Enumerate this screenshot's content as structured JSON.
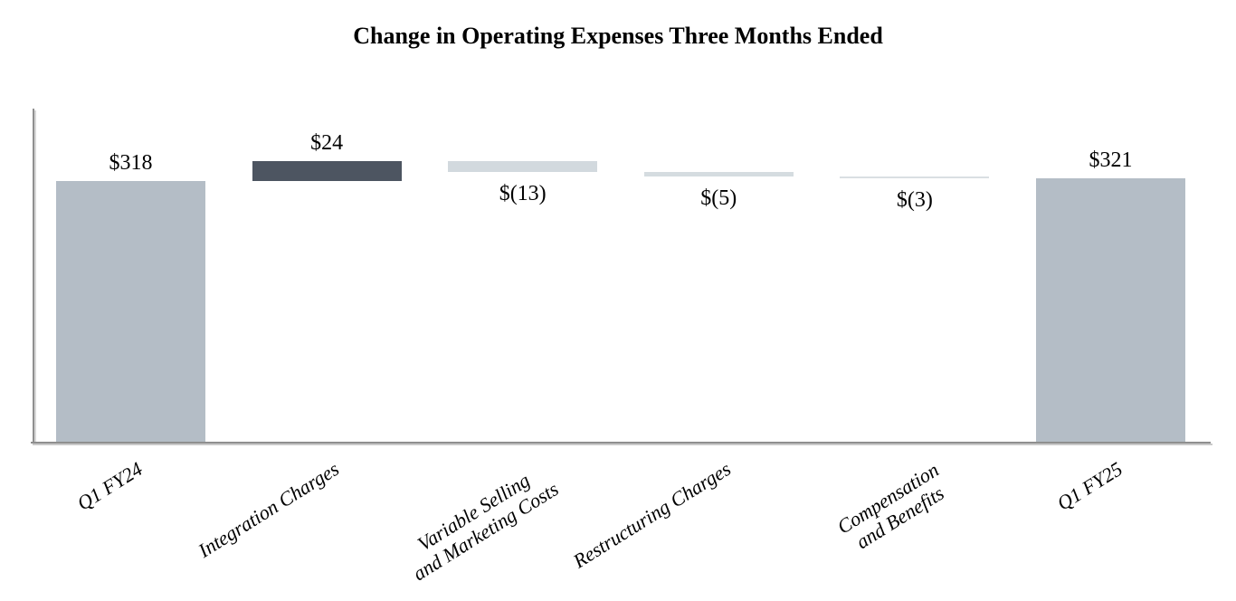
{
  "chart_data": {
    "type": "bar",
    "subtype": "waterfall",
    "title": "Change in Operating Expenses Three Months Ended",
    "xlabel": "",
    "ylabel": "",
    "ylim": [
      0,
      360
    ],
    "grid": false,
    "legend": false,
    "axis_color": "#8f8f8f",
    "categories": [
      "Q1 FY24",
      "Integration Charges",
      "Variable Selling\nand Marketing Costs",
      "Restructuring Charges",
      "Compensation\nand Benefits",
      "Q1 FY25"
    ],
    "bars": [
      {
        "category": "Q1 FY24",
        "kind": "total",
        "value": 318,
        "label": "$318",
        "label_position": "above",
        "color": "#b4bdc6"
      },
      {
        "category": "Integration Charges",
        "kind": "delta",
        "value": 24,
        "label": "$24",
        "label_position": "above",
        "color": "#4d5561"
      },
      {
        "category": "Variable Selling\nand Marketing Costs",
        "kind": "delta",
        "value": -13,
        "label": "$(13)",
        "label_position": "below",
        "color": "#d2d9de"
      },
      {
        "category": "Restructuring Charges",
        "kind": "delta",
        "value": -5,
        "label": "$(5)",
        "label_position": "below",
        "color": "#d5dce0"
      },
      {
        "category": "Compensation\nand Benefits",
        "kind": "delta",
        "value": -3,
        "label": "$(3)",
        "label_position": "below",
        "color": "#dadfe3"
      },
      {
        "category": "Q1 FY25",
        "kind": "total",
        "value": 321,
        "label": "$321",
        "label_position": "above",
        "color": "#b4bdc6"
      }
    ]
  }
}
